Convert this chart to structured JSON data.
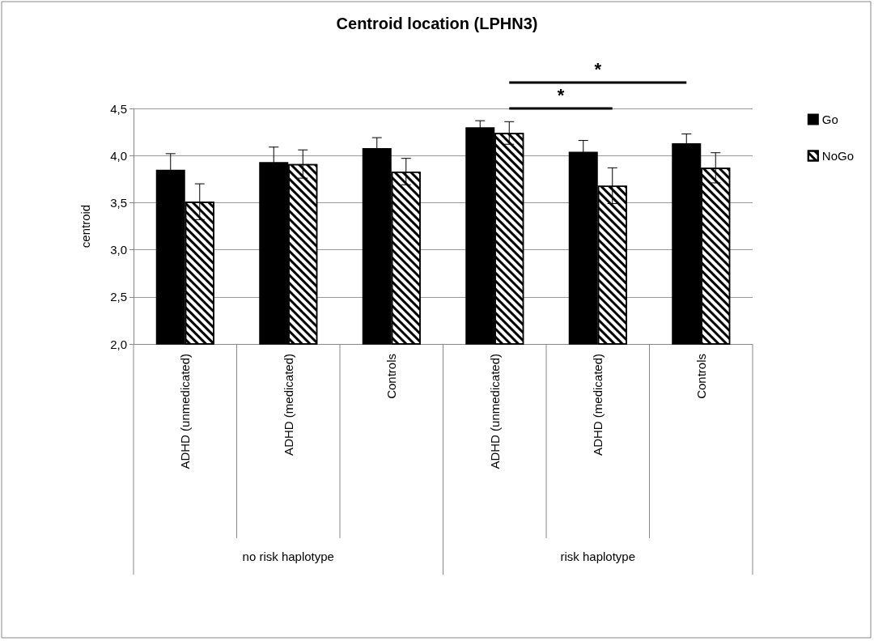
{
  "chart_data": {
    "type": "bar",
    "title": "Centroid location (LPHN3)",
    "ylabel": "centroid",
    "categories": [
      "ADHD (unmedicated)",
      "ADHD (medicated)",
      "Controls",
      "ADHD (unmedicated)",
      "ADHD (medicated)",
      "Controls"
    ],
    "series": [
      {
        "name": "Go",
        "color": "#000000",
        "values": [
          3.85,
          3.93,
          4.08,
          4.3,
          4.04,
          4.13
        ],
        "errors": [
          0.17,
          0.16,
          0.11,
          0.07,
          0.12,
          0.1
        ]
      },
      {
        "name": "NoGo",
        "color": "#ffffff",
        "values": [
          3.51,
          3.91,
          3.83,
          4.24,
          3.68,
          3.87
        ],
        "errors": [
          0.19,
          0.15,
          0.14,
          0.12,
          0.19,
          0.16
        ]
      }
    ],
    "ylim": [
      2,
      4.5
    ],
    "yticks": [
      {
        "value": 2,
        "label": "2,0"
      },
      {
        "value": 2.5,
        "label": "2,5"
      },
      {
        "value": 3,
        "label": "3,0"
      },
      {
        "value": 3.5,
        "label": "3,5"
      },
      {
        "value": 4,
        "label": "4,0"
      },
      {
        "value": 4.5,
        "label": "4,5"
      }
    ],
    "grid": "y",
    "legend": "right",
    "annotations": [
      "*",
      "*",
      "no risk haplotype",
      "risk haplotype"
    ]
  }
}
